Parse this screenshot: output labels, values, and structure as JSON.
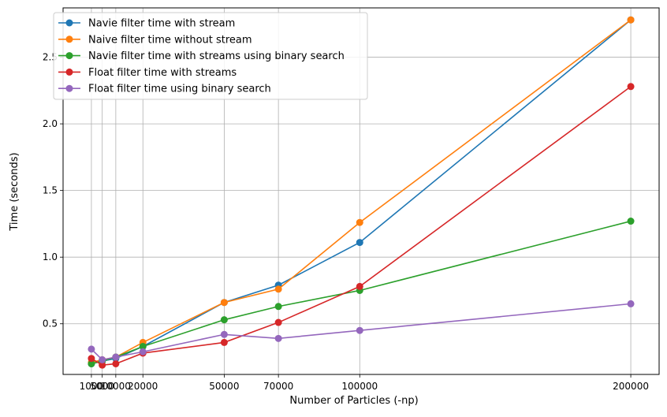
{
  "chart_data": {
    "type": "line",
    "title": "",
    "xlabel": "Number of Particles (-np)",
    "ylabel": "Time (seconds)",
    "x": [
      1000,
      5000,
      10000,
      20000,
      50000,
      70000,
      100000,
      200000
    ],
    "x_tick_labels": [
      "1000",
      "5000",
      "10000",
      "20000",
      "50000",
      "70000",
      "100000",
      "200000"
    ],
    "y_ticks": [
      0.5,
      1.0,
      1.5,
      2.0,
      2.5
    ],
    "y_tick_labels": [
      "0.5",
      "1.0",
      "1.5",
      "2.0",
      "2.5"
    ],
    "xlim": [
      -9450,
      210450
    ],
    "ylim": [
      0.12,
      2.87
    ],
    "grid": true,
    "legend_position": "upper-left",
    "series": [
      {
        "name": "Navie filter time with stream",
        "color": "#1f77b4",
        "values": [
          0.2,
          0.22,
          0.24,
          0.33,
          0.66,
          0.79,
          1.11,
          2.78
        ]
      },
      {
        "name": "Naive filter time without stream",
        "color": "#ff7f0e",
        "values": [
          0.21,
          0.23,
          0.25,
          0.36,
          0.66,
          0.76,
          1.26,
          2.78
        ]
      },
      {
        "name": "Navie filter time with streams using binary search",
        "color": "#2ca02c",
        "values": [
          0.2,
          0.22,
          0.25,
          0.33,
          0.53,
          0.63,
          0.75,
          1.27
        ]
      },
      {
        "name": "Float filter time with streams",
        "color": "#d62728",
        "values": [
          0.24,
          0.19,
          0.2,
          0.28,
          0.36,
          0.51,
          0.78,
          2.28
        ]
      },
      {
        "name": "Float filter time using binary search",
        "color": "#9467bd",
        "values": [
          0.31,
          0.23,
          0.25,
          0.29,
          0.42,
          0.39,
          0.45,
          0.65
        ]
      }
    ]
  }
}
